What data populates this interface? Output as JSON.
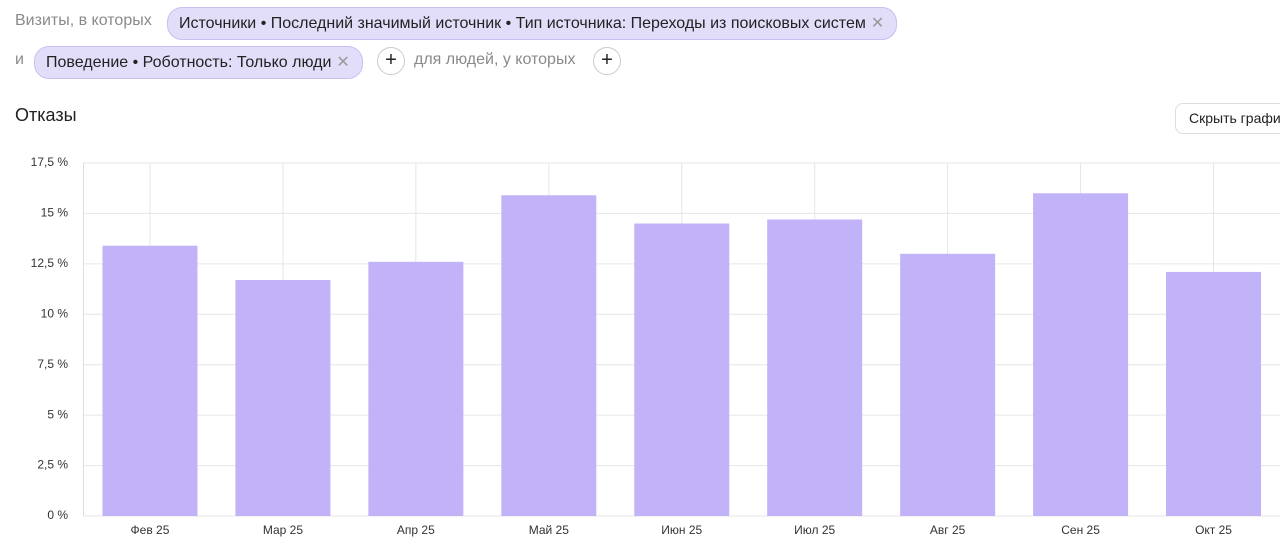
{
  "filters": {
    "prefix": "Визиты, в которых",
    "chip1": "Источники • Последний значимый источник • Тип источника: Переходы из поисковых систем",
    "conjunction": "и",
    "chip2": "Поведение • Роботность: Только люди",
    "people": "для людей, у которых"
  },
  "hide_button": "Скрыть графи",
  "chart_data": {
    "type": "bar",
    "title": "Отказы",
    "categories": [
      "Фев 25",
      "Мар 25",
      "Апр 25",
      "Май 25",
      "Июн 25",
      "Июл 25",
      "Авг 25",
      "Сен 25",
      "Окт 25"
    ],
    "values": [
      13.4,
      11.7,
      12.6,
      15.9,
      14.5,
      14.7,
      13.0,
      16.0,
      12.1
    ],
    "color": "#c2b3f9",
    "ylim": [
      0,
      17.5
    ],
    "yticks": [
      {
        "value": 0,
        "label": "0 %"
      },
      {
        "value": 2.5,
        "label": "2,5 %"
      },
      {
        "value": 5,
        "label": "5 %"
      },
      {
        "value": 7.5,
        "label": "7,5 %"
      },
      {
        "value": 10,
        "label": "10 %"
      },
      {
        "value": 12.5,
        "label": "12,5 %"
      },
      {
        "value": 15,
        "label": "15 %"
      },
      {
        "value": 17.5,
        "label": "17,5 %"
      }
    ],
    "grid": true
  }
}
